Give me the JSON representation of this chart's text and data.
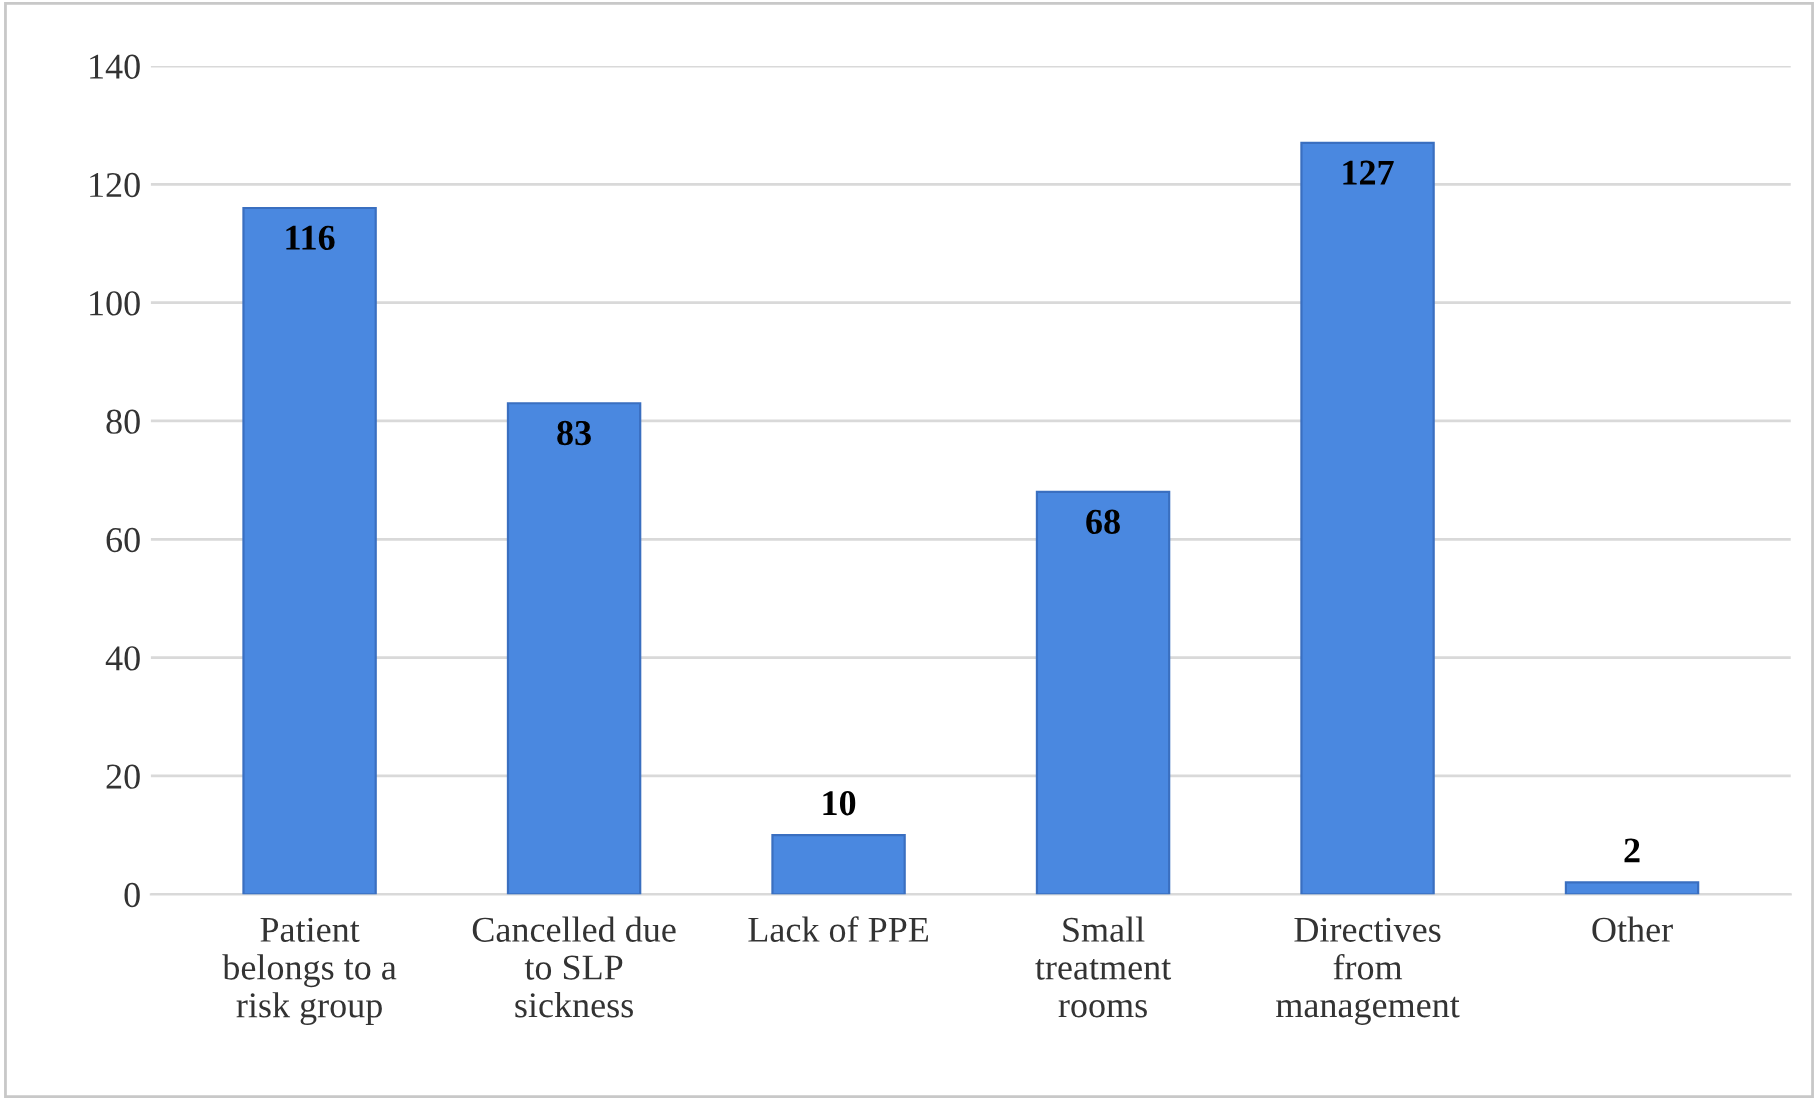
{
  "chart_data": {
    "type": "bar",
    "categories": [
      "Patient\nbelongs to a\nrisk group",
      "Cancelled due\nto SLP\nsickness",
      "Lack of PPE",
      "Small\ntreatment\nrooms",
      "Directives\nfrom\nmanagement",
      "Other"
    ],
    "values": [
      116,
      83,
      10,
      68,
      127,
      2
    ],
    "color": "#4a88e0",
    "ylim": [
      0,
      140
    ],
    "yticks": [
      0,
      20,
      40,
      60,
      80,
      100,
      120,
      140
    ],
    "grid": "y",
    "data_labels": true,
    "legend": false
  }
}
